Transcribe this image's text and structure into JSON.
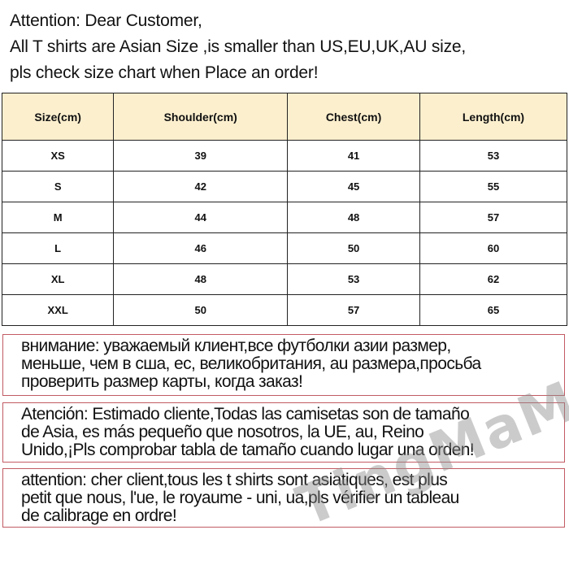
{
  "intro": [
    "Attention: Dear Customer,",
    "All T shirts are  Asian Size ,is smaller than US,EU,UK,AU size,",
    "pls check size chart when Place an order!"
  ],
  "size_table": {
    "headers": [
      "Size(cm)",
      "Shoulder(cm)",
      "Chest(cm)",
      "Length(cm)"
    ],
    "rows": [
      [
        "XS",
        "39",
        "41",
        "53"
      ],
      [
        "S",
        "42",
        "45",
        "55"
      ],
      [
        "M",
        "44",
        "48",
        "57"
      ],
      [
        "L",
        "46",
        "50",
        "60"
      ],
      [
        "XL",
        "48",
        "53",
        "62"
      ],
      [
        "XXL",
        "50",
        "57",
        "65"
      ]
    ]
  },
  "notices": [
    [
      "внимание: уважаемый клиент,все футболки азии размер,",
      "меньше, чем в сша, ес, великобритания, au размера,просьба",
      "проверить размер карты, когда заказ!"
    ],
    [
      "Atención: Estimado cliente,Todas las camisetas son de tamaño",
      "de Asia, es más pequeño que nosotros, la UE, au, Reino",
      "Unido,¡Pls comprobar tabla de tamaño cuando lugar una orden!"
    ],
    [
      "attention: cher client,tous les t shirts sont asiatiques, est plus",
      "petit que nous, l'ue, le royaume - uni, ua,pls vérifier un tableau",
      "de calibrage en ordre!"
    ]
  ],
  "watermark": "TingMaMa",
  "colors": {
    "header_bg": "#fcefce",
    "notice_border": "#c25b63"
  }
}
